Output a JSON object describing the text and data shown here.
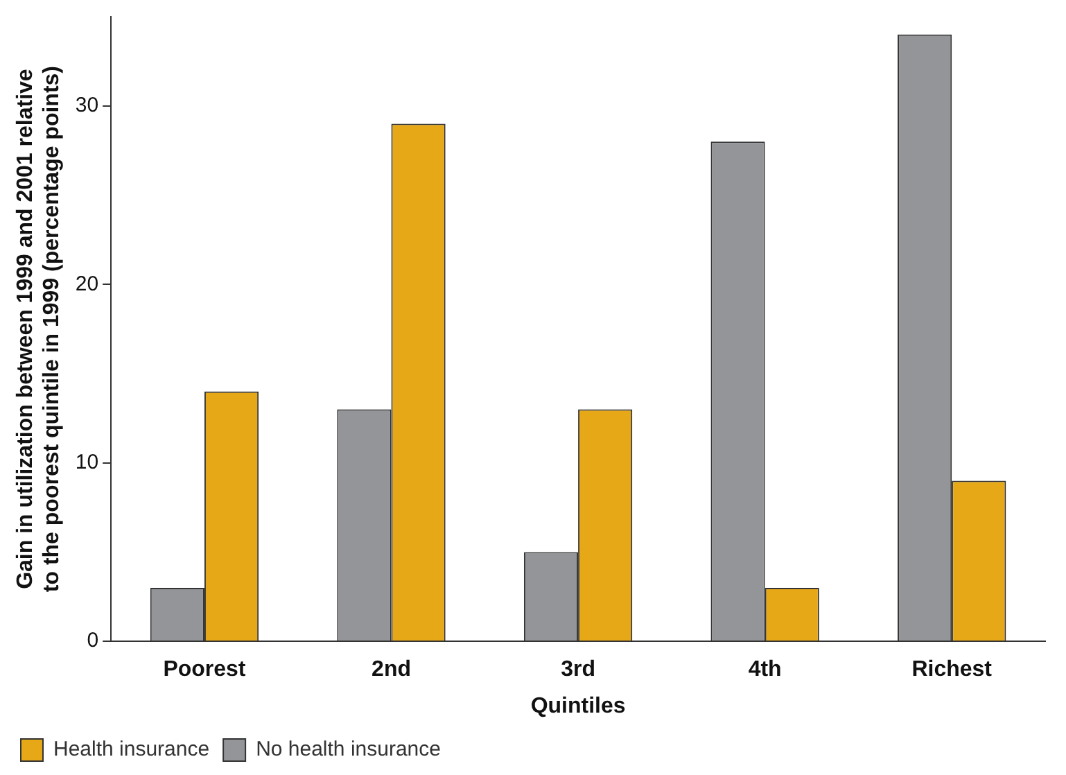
{
  "chart_data": {
    "type": "bar",
    "xlabel": "Quintiles",
    "ylabel": "Gain in utilization between 1999 and 2001 relative to the poorest quintile in 1999 (percentage points)",
    "categories": [
      "Poorest",
      "2nd",
      "3rd",
      "4th",
      "Richest"
    ],
    "series": [
      {
        "name": "No health insurance",
        "color": "#939598",
        "values": [
          3,
          13,
          5,
          28,
          34
        ]
      },
      {
        "name": "Health insurance",
        "color": "#e6a817",
        "values": [
          14,
          29,
          13,
          3,
          9
        ]
      }
    ],
    "ylim": [
      0,
      35
    ],
    "yticks": [
      0,
      10,
      20,
      30
    ],
    "grid": false,
    "legend": "bottom left"
  }
}
